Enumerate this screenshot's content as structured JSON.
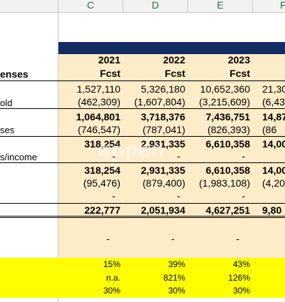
{
  "columns": [
    "C",
    "D",
    "E",
    "F"
  ],
  "header": {
    "years": [
      "2021",
      "2022",
      "2023"
    ],
    "fcst": [
      "Fcst",
      "Fcst",
      "Fcst"
    ]
  },
  "labels": {
    "expenses": "enses",
    "cogs": "old",
    "opex": "ses",
    "other": "s/income"
  },
  "rows": {
    "revenue": [
      "1,527,110",
      "5,326,180",
      "10,652,360",
      "21,30"
    ],
    "cogs": [
      "(462,309)",
      "(1,607,804)",
      "(3,215,609)",
      "(6,43"
    ],
    "gross": [
      "1,064,801",
      "3,718,376",
      "7,436,751",
      "14,87"
    ],
    "opex": [
      "(746,547)",
      "(787,041)",
      "(826,393)",
      "(86"
    ],
    "ebit": [
      "318,254",
      "2,931,335",
      "6,610,358",
      "14,00"
    ],
    "other": [
      "-",
      "-",
      "-"
    ],
    "ebt": [
      "318,254",
      "2,931,335",
      "6,610,358",
      "14,00"
    ],
    "tax": [
      "(95,476)",
      "(879,400)",
      "(1,983,108)",
      "(4,20"
    ],
    "dash": [
      "-",
      "-",
      "-"
    ],
    "net": [
      "222,777",
      "2,051,934",
      "4,627,251",
      "9,80"
    ],
    "blank_dash": [
      "-",
      "-",
      "-"
    ],
    "margin": [
      "15%",
      "39%",
      "43%"
    ],
    "growth": [
      "n.a.",
      "821%",
      "126%"
    ],
    "rate": [
      "30%",
      "30%",
      "30%"
    ]
  },
  "watermark": "appen"
}
